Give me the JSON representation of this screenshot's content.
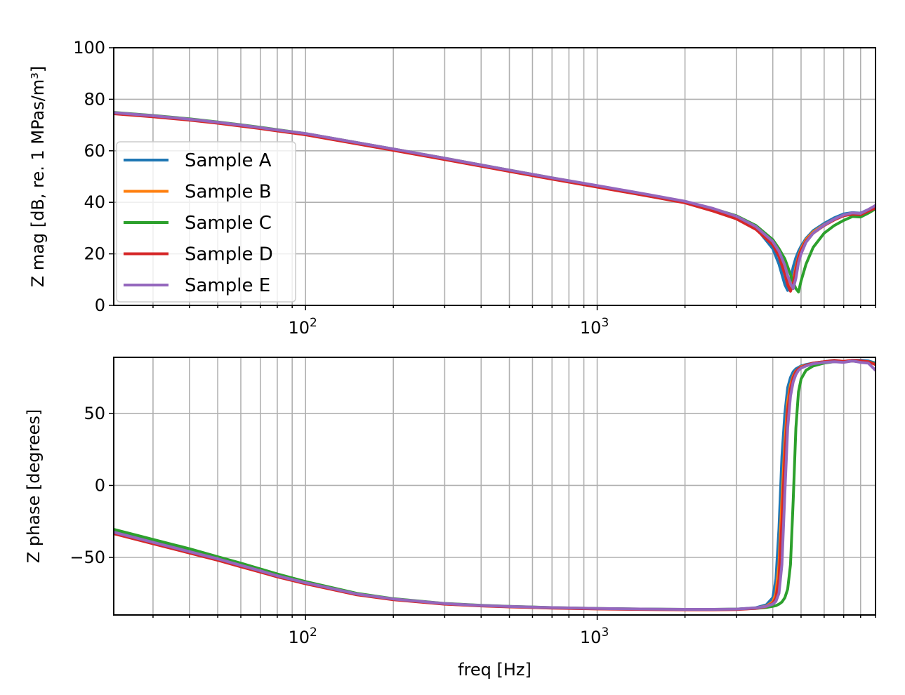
{
  "chart_data": [
    {
      "type": "line",
      "xscale": "log",
      "xlim": [
        22,
        9000
      ],
      "ylim": [
        0,
        100
      ],
      "xlabel": "",
      "ylabel": "Z mag [dB, re. 1 MPas/m³]",
      "yticks": [
        "0",
        "20",
        "40",
        "60",
        "80",
        "100"
      ],
      "xticks": [
        {
          "base": "10",
          "exp": "2"
        },
        {
          "base": "10",
          "exp": "3"
        }
      ],
      "grid": true,
      "legend": {
        "placement": "center-left",
        "entries": [
          "Sample A",
          "Sample B",
          "Sample C",
          "Sample D",
          "Sample E"
        ]
      },
      "x": [
        22,
        30,
        40,
        50,
        60,
        70,
        80,
        100,
        150,
        200,
        300,
        400,
        500,
        700,
        1000,
        1500,
        2000,
        2500,
        3000,
        3500,
        4000,
        4200,
        4400,
        4500,
        4600,
        4700,
        4800,
        4900,
        5000,
        5200,
        5500,
        6000,
        6500,
        7000,
        7500,
        8000,
        8500,
        9000
      ],
      "series": [
        {
          "name": "Sample A",
          "color": "#1f77b4",
          "values": [
            74.8,
            73.6,
            72.3,
            71.1,
            70.0,
            69.0,
            68.1,
            66.6,
            63.1,
            60.6,
            57.0,
            54.4,
            52.4,
            49.4,
            46.3,
            42.8,
            40.2,
            37.2,
            34.3,
            30.2,
            22.0,
            16.0,
            8.0,
            5.8,
            10.0,
            15.0,
            18.5,
            21.0,
            23.0,
            26.0,
            29.0,
            31.8,
            34.0,
            35.5,
            36.0,
            35.8,
            37.2,
            38.5
          ]
        },
        {
          "name": "Sample B",
          "color": "#ff7f0e",
          "values": [
            74.6,
            73.4,
            72.1,
            70.9,
            69.8,
            68.8,
            67.9,
            66.4,
            62.9,
            60.4,
            56.8,
            54.2,
            52.2,
            49.2,
            46.1,
            42.6,
            40.0,
            36.9,
            33.9,
            29.8,
            24.0,
            19.5,
            13.0,
            9.0,
            6.0,
            9.5,
            15.0,
            19.0,
            22.0,
            25.5,
            28.5,
            31.3,
            33.4,
            35.0,
            35.6,
            35.4,
            36.9,
            38.0
          ]
        },
        {
          "name": "Sample C",
          "color": "#2ca02c",
          "values": [
            74.9,
            73.7,
            72.4,
            71.2,
            70.1,
            69.1,
            68.2,
            66.7,
            63.2,
            60.7,
            57.1,
            54.5,
            52.5,
            49.5,
            46.4,
            42.9,
            40.3,
            37.5,
            34.8,
            31.0,
            25.5,
            22.0,
            18.0,
            15.0,
            12.0,
            9.0,
            6.5,
            5.2,
            9.5,
            16.0,
            22.5,
            28.0,
            31.0,
            33.0,
            34.5,
            34.3,
            35.8,
            37.5
          ]
        },
        {
          "name": "Sample D",
          "color": "#d62728",
          "values": [
            74.4,
            73.2,
            71.9,
            70.7,
            69.6,
            68.6,
            67.7,
            66.2,
            62.7,
            60.2,
            56.6,
            54.0,
            52.0,
            49.0,
            45.9,
            42.4,
            39.8,
            36.6,
            33.6,
            29.5,
            23.5,
            19.0,
            12.0,
            8.0,
            5.5,
            8.5,
            14.0,
            18.5,
            21.5,
            25.0,
            28.0,
            31.0,
            33.2,
            34.8,
            35.4,
            35.2,
            36.6,
            37.8
          ]
        },
        {
          "name": "Sample E",
          "color": "#9467bd",
          "values": [
            74.8,
            73.6,
            72.3,
            71.1,
            70.0,
            69.0,
            68.1,
            66.7,
            63.2,
            60.7,
            57.1,
            54.5,
            52.5,
            49.5,
            46.5,
            43.0,
            40.4,
            37.6,
            34.6,
            30.6,
            24.8,
            21.0,
            15.5,
            11.5,
            8.5,
            6.5,
            10.5,
            16.5,
            20.0,
            24.5,
            28.0,
            31.2,
            33.5,
            35.1,
            35.9,
            35.7,
            37.2,
            38.8
          ]
        }
      ]
    },
    {
      "type": "line",
      "xscale": "log",
      "xlim": [
        22,
        9000
      ],
      "ylim": [
        -90,
        89
      ],
      "xlabel": "freq [Hz]",
      "ylabel": "Z phase [degrees]",
      "yticks": [
        "−50",
        "0",
        "50"
      ],
      "ytick_values": [
        -50,
        0,
        50
      ],
      "xticks": [
        {
          "base": "10",
          "exp": "2"
        },
        {
          "base": "10",
          "exp": "3"
        }
      ],
      "grid": true,
      "x": [
        22,
        30,
        40,
        50,
        60,
        70,
        80,
        100,
        150,
        200,
        300,
        400,
        500,
        700,
        1000,
        1500,
        2000,
        2500,
        3000,
        3500,
        3800,
        4000,
        4100,
        4200,
        4300,
        4400,
        4500,
        4600,
        4700,
        4800,
        4900,
        5000,
        5200,
        5500,
        6000,
        6500,
        7000,
        7500,
        8000,
        8500,
        9000
      ],
      "series": [
        {
          "name": "Sample A",
          "color": "#1f77b4",
          "values": [
            -31.5,
            -38.5,
            -45.0,
            -50.5,
            -55.0,
            -59.0,
            -62.5,
            -67.5,
            -75.5,
            -79.0,
            -82.2,
            -83.5,
            -84.2,
            -85.0,
            -85.6,
            -86.0,
            -86.2,
            -86.2,
            -86.0,
            -85.0,
            -83.0,
            -78.0,
            -65.0,
            -30.0,
            20.0,
            50.0,
            68.0,
            75.0,
            79.0,
            81.0,
            82.0,
            83.0,
            84.0,
            85.0,
            86.0,
            87.0,
            86.0,
            87.0,
            87.0,
            86.5,
            85.0
          ]
        },
        {
          "name": "Sample B",
          "color": "#ff7f0e",
          "values": [
            -33.0,
            -40.0,
            -46.5,
            -51.5,
            -56.0,
            -59.8,
            -63.2,
            -68.0,
            -75.8,
            -79.2,
            -82.4,
            -83.6,
            -84.3,
            -85.1,
            -85.7,
            -86.1,
            -86.3,
            -86.3,
            -86.1,
            -85.2,
            -83.8,
            -81.0,
            -75.0,
            -55.0,
            -10.0,
            30.0,
            58.0,
            70.0,
            76.0,
            79.5,
            81.0,
            82.5,
            83.5,
            84.8,
            86.0,
            86.5,
            86.0,
            86.5,
            86.0,
            86.0,
            84.0
          ]
        },
        {
          "name": "Sample C",
          "color": "#2ca02c",
          "values": [
            -30.5,
            -37.5,
            -44.0,
            -49.5,
            -54.0,
            -58.0,
            -61.5,
            -66.8,
            -75.0,
            -78.7,
            -82.0,
            -83.3,
            -84.0,
            -84.9,
            -85.5,
            -85.9,
            -86.1,
            -86.1,
            -85.9,
            -85.4,
            -84.8,
            -84.0,
            -83.5,
            -82.5,
            -81.0,
            -78.0,
            -72.0,
            -55.0,
            -10.0,
            40.0,
            65.0,
            74.0,
            80.0,
            83.0,
            85.0,
            86.0,
            86.0,
            86.5,
            86.0,
            86.0,
            84.5
          ]
        },
        {
          "name": "Sample D",
          "color": "#d62728",
          "values": [
            -33.5,
            -40.5,
            -47.0,
            -52.0,
            -56.5,
            -60.2,
            -63.5,
            -68.3,
            -76.0,
            -79.4,
            -82.5,
            -83.7,
            -84.4,
            -85.2,
            -85.8,
            -86.2,
            -86.4,
            -86.4,
            -86.2,
            -85.4,
            -84.2,
            -82.0,
            -78.0,
            -65.0,
            -25.0,
            20.0,
            52.0,
            67.0,
            75.0,
            79.0,
            81.0,
            82.0,
            83.5,
            85.0,
            86.0,
            86.8,
            86.2,
            87.0,
            86.5,
            86.0,
            84.0
          ]
        },
        {
          "name": "Sample E",
          "color": "#9467bd",
          "values": [
            -32.5,
            -39.5,
            -46.0,
            -51.0,
            -55.5,
            -59.3,
            -62.8,
            -67.6,
            -75.4,
            -78.9,
            -82.1,
            -83.4,
            -84.1,
            -84.9,
            -85.5,
            -85.9,
            -86.1,
            -86.1,
            -85.9,
            -85.1,
            -84.0,
            -82.5,
            -80.5,
            -75.0,
            -55.0,
            -5.0,
            40.0,
            62.0,
            72.0,
            77.0,
            80.0,
            81.5,
            83.0,
            84.5,
            85.5,
            86.0,
            85.5,
            86.5,
            85.5,
            85.0,
            80.0
          ]
        }
      ]
    }
  ]
}
